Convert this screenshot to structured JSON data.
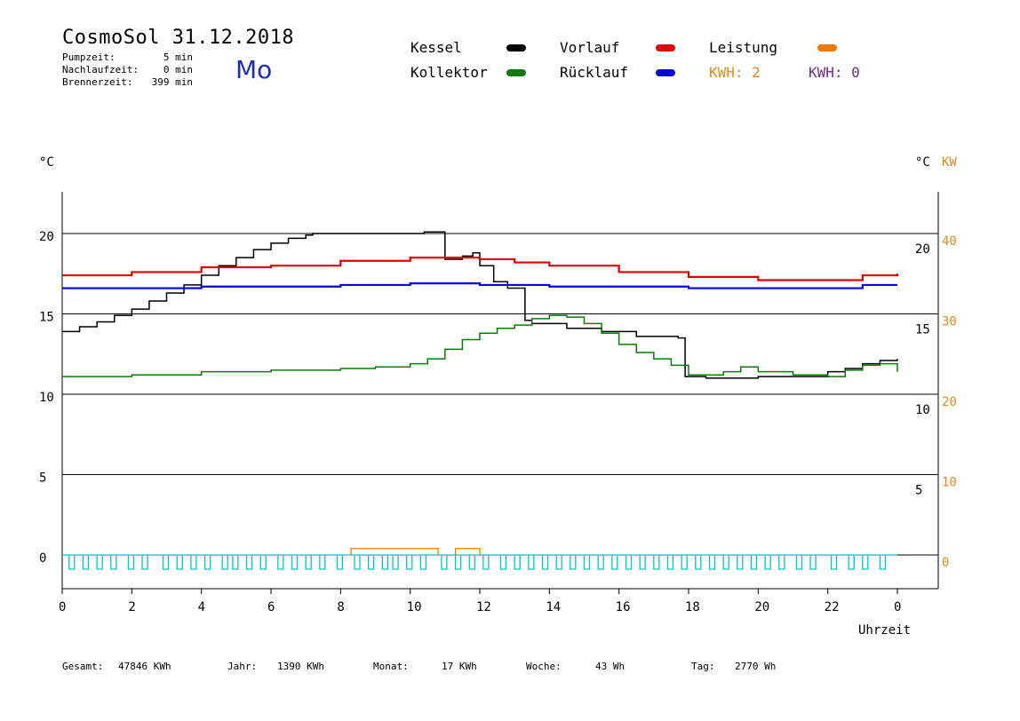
{
  "header": {
    "title": "CosmoSol 31.12.2018",
    "pump_label": "Pumpzeit:",
    "pump_value": "5 min",
    "nachlauf_label": "Nachlaufzeit:",
    "nachlauf_value": "0 min",
    "brenner_label": "Brennerzeit:",
    "brenner_value": "399 min",
    "day": "Mo"
  },
  "legend": {
    "kessel": "Kessel",
    "kollektor": "Kollektor",
    "vorlauf": "Vorlauf",
    "ruecklauf": "Rücklauf",
    "leistung": "Leistung",
    "kwh1": "KWH: 2",
    "kwh2": "KWH: 0"
  },
  "colors": {
    "kessel": "#000000",
    "kollektor": "#0a7a0a",
    "vorlauf": "#e00000",
    "ruecklauf": "#0000e0",
    "leistung": "#f07800",
    "kwh1": "#e08a1e",
    "kwh2": "#7a2a8a",
    "pump": "#00c8c8"
  },
  "chart_data": {
    "type": "line",
    "left_axis_unit": "°C",
    "right_axis_unit": "°C",
    "right_axis_unit2": "KW",
    "xlabel": "Uhrzeit",
    "xlim": [
      0,
      24
    ],
    "ylim_left": [
      -1.5,
      23
    ],
    "x_ticks": [
      "0",
      "2",
      "4",
      "6",
      "8",
      "10",
      "12",
      "14",
      "16",
      "18",
      "20",
      "22",
      "0"
    ],
    "y_ticks_left": [
      "0",
      "5",
      "10",
      "15",
      "20"
    ],
    "y_ticks_right": [
      "5",
      "10",
      "15",
      "20"
    ],
    "y_ticks_kw": [
      "0",
      "10",
      "20",
      "30",
      "40"
    ],
    "grid": true,
    "series": [
      {
        "name": "Kessel",
        "key": "kessel",
        "x": [
          0,
          0.5,
          1,
          1.5,
          2,
          2.5,
          3,
          3.5,
          4,
          4.5,
          5,
          5.5,
          6,
          6.5,
          7,
          7.2,
          10.4,
          10.8,
          11.0,
          11.5,
          11.8,
          12.0,
          12.4,
          12.8,
          13.3,
          13.5,
          14.5,
          15.5,
          16.5,
          17.7,
          17.9,
          18.5,
          20,
          22,
          22.5,
          23,
          23.5,
          24
        ],
        "y": [
          13.9,
          14.2,
          14.5,
          14.9,
          15.3,
          15.8,
          16.3,
          16.8,
          17.4,
          18.0,
          18.5,
          19.0,
          19.4,
          19.7,
          19.9,
          20.0,
          20.1,
          20.1,
          18.4,
          18.6,
          18.8,
          18.0,
          17.0,
          16.6,
          14.6,
          14.4,
          14.1,
          13.9,
          13.6,
          13.5,
          11.1,
          11.0,
          11.1,
          11.4,
          11.6,
          11.9,
          12.1,
          12.2
        ]
      },
      {
        "name": "Kollektor",
        "key": "kollektor",
        "x": [
          0,
          2,
          4,
          6,
          8,
          9,
          10,
          10.5,
          11,
          11.5,
          12,
          12.5,
          13,
          13.5,
          14,
          14.5,
          15,
          15.5,
          16,
          16.5,
          17,
          17.5,
          18,
          18.5,
          19,
          19.5,
          20,
          21,
          22,
          22.5,
          23,
          23.5,
          24
        ],
        "y": [
          11.1,
          11.2,
          11.4,
          11.5,
          11.6,
          11.7,
          11.9,
          12.2,
          12.8,
          13.4,
          13.8,
          14.1,
          14.3,
          14.7,
          14.9,
          14.8,
          14.4,
          13.8,
          13.1,
          12.6,
          12.2,
          11.8,
          11.2,
          11.2,
          11.4,
          11.7,
          11.4,
          11.2,
          11.1,
          11.5,
          11.8,
          11.9,
          11.4
        ]
      },
      {
        "name": "Vorlauf",
        "key": "vorlauf",
        "x": [
          0,
          2,
          4,
          6,
          8,
          10,
          11,
          12,
          13,
          14,
          16,
          18,
          20,
          22,
          23,
          24
        ],
        "y": [
          17.4,
          17.6,
          17.9,
          18.0,
          18.3,
          18.5,
          18.5,
          18.4,
          18.2,
          18.0,
          17.6,
          17.3,
          17.1,
          17.1,
          17.4,
          17.5
        ]
      },
      {
        "name": "Rücklauf",
        "key": "ruecklauf",
        "x": [
          0,
          4,
          8,
          10,
          12,
          14,
          16,
          18,
          20,
          22,
          23,
          24
        ],
        "y": [
          16.6,
          16.7,
          16.8,
          16.9,
          16.8,
          16.7,
          16.7,
          16.6,
          16.6,
          16.6,
          16.8,
          16.8
        ]
      },
      {
        "name": "Leistung",
        "key": "leistung",
        "segments": [
          [
            8.3,
            10.8,
            0.4
          ],
          [
            11.3,
            12.0,
            0.4
          ]
        ]
      }
    ],
    "pump_pulses_x": [
      0.2,
      0.6,
      1.0,
      1.4,
      1.9,
      2.3,
      2.9,
      3.3,
      3.7,
      4.1,
      4.6,
      4.9,
      5.3,
      5.7,
      6.2,
      6.6,
      7.0,
      7.4,
      7.9,
      8.4,
      8.8,
      9.2,
      9.5,
      9.9,
      10.3,
      10.9,
      11.3,
      11.7,
      12.1,
      12.6,
      13.0,
      13.4,
      13.8,
      14.2,
      14.6,
      15.0,
      15.4,
      15.8,
      16.2,
      16.6,
      17.0,
      17.4,
      17.8,
      18.2,
      18.6,
      19.0,
      19.4,
      19.8,
      20.2,
      20.6,
      21.1,
      21.5,
      22.1,
      22.6,
      23.0,
      23.5
    ]
  },
  "footer": {
    "gesamt_label": "Gesamt:",
    "gesamt_value": "47846 KWh",
    "jahr_label": "Jahr:",
    "jahr_value": "1390 KWh",
    "monat_label": "Monat:",
    "monat_value": "17 KWh",
    "woche_label": "Woche:",
    "woche_value": "43 Wh",
    "tag_label": "Tag:",
    "tag_value": "2770 Wh"
  }
}
